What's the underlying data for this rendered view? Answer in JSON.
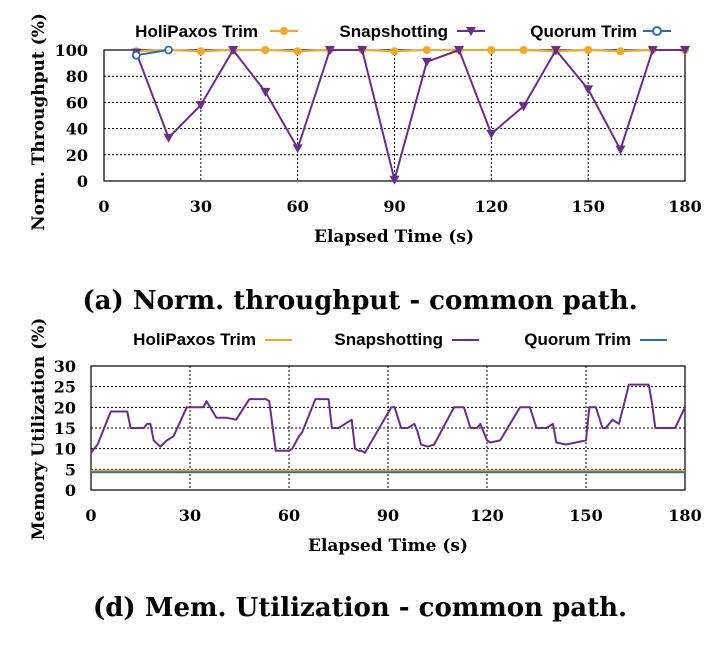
{
  "chart_data": [
    {
      "type": "line",
      "caption": "(a) Norm. throughput - common path.",
      "xlabel": "Elapsed Time (s)",
      "ylabel": "Norm. Throughput (%)",
      "xlim": [
        0,
        180
      ],
      "ylim": [
        0,
        100
      ],
      "xticks": [
        "0",
        "30",
        "60",
        "90",
        "120",
        "150",
        "180"
      ],
      "yticks": [
        "0",
        "20",
        "40",
        "60",
        "80",
        "100"
      ],
      "grid": true,
      "legend_position": "top",
      "series": [
        {
          "name": "HoliPaxos Trim",
          "color": "#f5a623",
          "marker": "circle",
          "x": [
            10,
            20,
            30,
            40,
            50,
            60,
            70,
            80,
            90,
            100,
            110,
            120,
            130,
            140,
            150,
            160,
            170,
            180
          ],
          "y": [
            99,
            100,
            99,
            100,
            100,
            99,
            100,
            100,
            99,
            100,
            100,
            100,
            100,
            99,
            100,
            99,
            100,
            100
          ]
        },
        {
          "name": "Snapshotting",
          "color": "#6b2c8c",
          "marker": "triangle-down",
          "x": [
            10,
            20,
            30,
            40,
            50,
            60,
            70,
            80,
            90,
            100,
            110,
            120,
            130,
            140,
            150,
            160,
            170,
            180
          ],
          "y": [
            98,
            33,
            58,
            100,
            68,
            25,
            100,
            100,
            1,
            91,
            100,
            36,
            57,
            100,
            70,
            24,
            100,
            100
          ]
        },
        {
          "name": "Quorum Trim",
          "color": "#2c6fa8",
          "marker": "circle",
          "x": [
            10,
            20
          ],
          "y": [
            96,
            100
          ]
        }
      ]
    },
    {
      "type": "line",
      "caption": "(d) Mem. Utilization - common path.",
      "xlabel": "Elapsed Time (s)",
      "ylabel": "Memory Utilization (%)",
      "xlim": [
        0,
        180
      ],
      "ylim": [
        0,
        30
      ],
      "xticks": [
        "0",
        "30",
        "60",
        "90",
        "120",
        "150",
        "180"
      ],
      "yticks": [
        "0",
        "5",
        "10",
        "15",
        "20",
        "25",
        "30"
      ],
      "grid": true,
      "legend_position": "top",
      "series": [
        {
          "name": "HoliPaxos Trim",
          "color": "#f5a623",
          "x": [
            0,
            180
          ],
          "y": [
            4.7,
            4.7
          ]
        },
        {
          "name": "Snapshotting",
          "color": "#6b2c8c",
          "x": [
            0,
            2,
            4,
            6,
            11,
            12,
            13,
            16,
            17,
            18,
            19,
            21,
            23,
            25,
            29,
            33,
            34,
            35,
            38,
            41,
            44,
            48,
            52,
            53,
            54,
            56,
            58,
            60,
            61,
            63,
            64,
            68,
            69,
            72,
            73,
            74,
            75,
            79,
            80,
            81,
            82,
            83,
            91,
            92,
            94,
            96,
            98,
            99,
            100,
            102,
            104,
            110,
            111,
            113,
            115,
            117,
            118,
            120,
            121,
            124,
            130,
            131,
            133,
            135,
            136,
            138,
            140,
            141,
            144,
            150,
            151,
            153,
            155,
            156,
            158,
            160,
            163,
            169,
            170,
            171,
            177,
            180
          ],
          "y": [
            9,
            11,
            15,
            19,
            19,
            15,
            15,
            15,
            16,
            16,
            12,
            10.5,
            12,
            13,
            20,
            20,
            20,
            21.5,
            17.5,
            17.5,
            17,
            22,
            22,
            22,
            21.5,
            9.5,
            9.5,
            9.5,
            10,
            13,
            14,
            22,
            22,
            22,
            15,
            15,
            15,
            17,
            10,
            9.5,
            9.5,
            9,
            20,
            20,
            15,
            15,
            16,
            14,
            11,
            10.5,
            11,
            20,
            20,
            20,
            15,
            15,
            16,
            12,
            11.5,
            12,
            20,
            20,
            20,
            15,
            15,
            15,
            16,
            11.5,
            11,
            12,
            20,
            20,
            15,
            15,
            17,
            16,
            25.5,
            25.5,
            21,
            15,
            15,
            20
          ]
        },
        {
          "name": "Quorum Trim",
          "color": "#2c6fa8",
          "x": [
            0,
            180
          ],
          "y": [
            4.3,
            4.3
          ]
        }
      ]
    }
  ]
}
